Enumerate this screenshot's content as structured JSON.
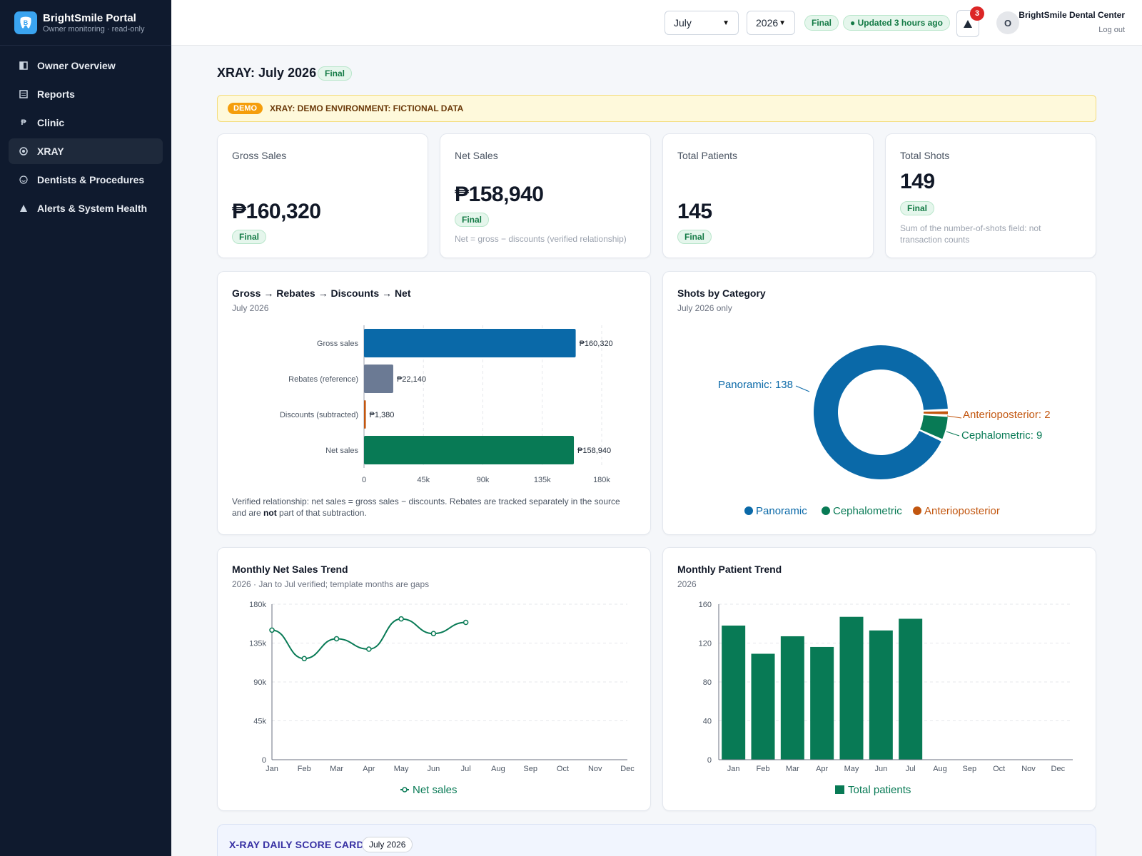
{
  "brand": {
    "name": "BrightSmile Portal",
    "subtitle": "Owner monitoring · read-only"
  },
  "nav": [
    {
      "label": "Owner Overview",
      "icon": "overview-icon"
    },
    {
      "label": "Reports",
      "icon": "reports-icon"
    },
    {
      "label": "Clinic",
      "icon": "peso-icon"
    },
    {
      "label": "XRAY",
      "icon": "target-icon",
      "active": true
    },
    {
      "label": "Dentists & Procedures",
      "icon": "smile-icon"
    },
    {
      "label": "Alerts & System Health",
      "icon": "warning-icon"
    }
  ],
  "topbar": {
    "month": "July",
    "year": "2026",
    "status": "Final",
    "updated": "● Updated 3 hours ago",
    "notifications": "3",
    "avatar_initial": "O",
    "user": "BrightSmile Dental Center",
    "logout": "Log out"
  },
  "page": {
    "title": "XRAY: July 2026",
    "status": "Final"
  },
  "demo": {
    "tag": "DEMO",
    "text": "XRAY: DEMO ENVIRONMENT: FICTIONAL DATA"
  },
  "kpis": [
    {
      "label": "Gross Sales",
      "value": "₱160,320",
      "badge": "Final",
      "note": ""
    },
    {
      "label": "Net Sales",
      "value": "₱158,940",
      "badge": "Final",
      "note": "Net = gross − discounts (verified relationship)"
    },
    {
      "label": "Total Patients",
      "value": "145",
      "badge": "Final",
      "note": ""
    },
    {
      "label": "Total Shots",
      "value": "149",
      "badge": "Final",
      "note": "Sum of the number-of-shots field: not transaction counts"
    }
  ],
  "waterfall": {
    "title": "Gross → Rebates → Discounts → Net",
    "subtitle": "July 2026",
    "footnote_pre": "Verified relationship: net sales = gross sales − discounts. Rebates are tracked separately in the source and are ",
    "footnote_bold": "not",
    "footnote_post": " part of that subtraction."
  },
  "donut": {
    "title": "Shots by Category",
    "subtitle": "July 2026 only"
  },
  "net_trend": {
    "title": "Monthly Net Sales Trend",
    "subtitle": "2026 · Jan to Jul verified; template months are gaps"
  },
  "patient_trend": {
    "title": "Monthly Patient Trend",
    "subtitle": "2026"
  },
  "scorecard": {
    "title": "X-RAY DAILY SCORE CARD",
    "badge": "July 2026"
  },
  "colors": {
    "blue": "#0a69a8",
    "gray": "#6b7a94",
    "orange": "#c2560f",
    "green": "#087a55"
  },
  "chart_data": [
    {
      "type": "bar",
      "orientation": "horizontal",
      "categories": [
        "Gross sales",
        "Rebates (reference)",
        "Discounts (subtracted)",
        "Net sales"
      ],
      "values": [
        160320,
        22140,
        1380,
        158940
      ],
      "data_labels": [
        "₱160,320",
        "₱22,140",
        "₱1,380",
        "₱158,940"
      ],
      "colors": [
        "#0a69a8",
        "#6b7a94",
        "#c2560f",
        "#087a55"
      ],
      "xlim": [
        0,
        180000
      ],
      "xticks": [
        "0",
        "45k",
        "90k",
        "135k",
        "180k"
      ]
    },
    {
      "type": "pie",
      "donut": true,
      "labels": [
        "Panoramic",
        "Cephalometric",
        "Anterioposterior"
      ],
      "values": [
        138,
        9,
        2
      ],
      "slice_labels": [
        "Panoramic: 138",
        "Cephalometric: 9",
        "Anterioposterior: 2"
      ],
      "colors": [
        "#0a69a8",
        "#087a55",
        "#c2560f"
      ],
      "legend": "bottom"
    },
    {
      "type": "line",
      "x": [
        "Jan",
        "Feb",
        "Mar",
        "Apr",
        "May",
        "Jun",
        "Jul",
        "Aug",
        "Sep",
        "Oct",
        "Nov",
        "Dec"
      ],
      "series": [
        {
          "name": "Net sales",
          "values": [
            150000,
            117000,
            140000,
            128000,
            163000,
            146000,
            158940,
            null,
            null,
            null,
            null,
            null
          ]
        }
      ],
      "ylim": [
        0,
        180000
      ],
      "yticks": [
        "0",
        "45k",
        "90k",
        "135k",
        "180k"
      ],
      "legend": "bottom"
    },
    {
      "type": "bar",
      "x": [
        "Jan",
        "Feb",
        "Mar",
        "Apr",
        "May",
        "Jun",
        "Jul",
        "Aug",
        "Sep",
        "Oct",
        "Nov",
        "Dec"
      ],
      "series": [
        {
          "name": "Total patients",
          "values": [
            138,
            109,
            127,
            116,
            147,
            133,
            145,
            null,
            null,
            null,
            null,
            null
          ]
        }
      ],
      "ylim": [
        0,
        160
      ],
      "yticks": [
        "0",
        "40",
        "80",
        "120",
        "160"
      ],
      "legend": "bottom"
    }
  ]
}
